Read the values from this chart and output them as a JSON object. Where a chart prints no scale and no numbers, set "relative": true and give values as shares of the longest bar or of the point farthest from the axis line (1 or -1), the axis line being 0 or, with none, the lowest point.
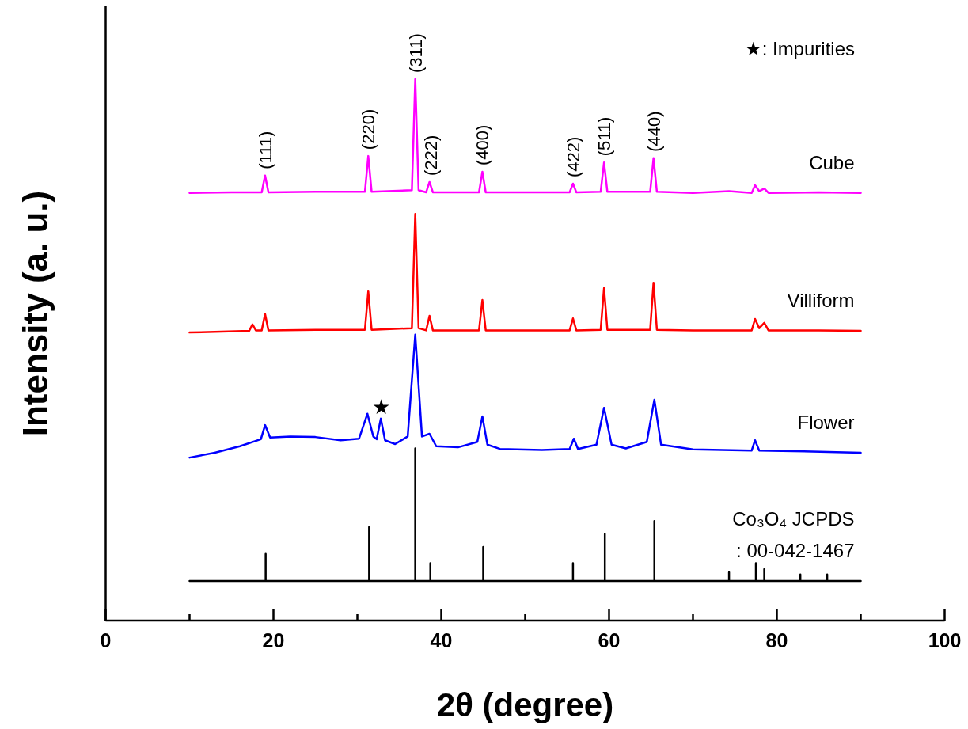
{
  "chart_data": {
    "type": "line",
    "relative": true,
    "xlabel": "2θ (degree)",
    "ylabel": "Intensity (a. u.)",
    "xlim": [
      0,
      100
    ],
    "xticks": [
      0,
      {
        "value": 10,
        "label": null
      },
      20,
      {
        "value": 30,
        "label": null
      },
      40,
      {
        "value": 50,
        "label": null
      },
      60,
      {
        "value": 70,
        "label": null
      },
      80,
      {
        "value": 90,
        "label": null
      },
      100
    ],
    "series": [
      {
        "name": "Cube",
        "color": "#ff00ff",
        "x": [
          10,
          15,
          18.6,
          19.0,
          19.4,
          25,
          30.9,
          31.3,
          31.7,
          36.5,
          36.9,
          37.3,
          38.2,
          38.6,
          39.0,
          44.5,
          44.9,
          45.3,
          50,
          55.3,
          55.7,
          56.1,
          59.0,
          59.4,
          59.8,
          64.9,
          65.3,
          65.7,
          70,
          74.3,
          77.0,
          77.4,
          77.9,
          78.5,
          79,
          85,
          90
        ],
        "values": [
          0.79,
          0.791,
          0.791,
          0.822,
          0.791,
          0.792,
          0.792,
          0.858,
          0.792,
          0.795,
          1.0,
          0.795,
          0.791,
          0.81,
          0.791,
          0.791,
          0.829,
          0.791,
          0.791,
          0.791,
          0.807,
          0.791,
          0.792,
          0.846,
          0.792,
          0.792,
          0.854,
          0.792,
          0.79,
          0.793,
          0.79,
          0.804,
          0.793,
          0.798,
          0.79,
          0.791,
          0.79
        ]
      },
      {
        "name": "Villiform",
        "color": "#ff0000",
        "x": [
          10,
          17.1,
          17.5,
          17.9,
          18.6,
          19.0,
          19.4,
          25,
          30.9,
          31.3,
          31.7,
          36.5,
          36.9,
          37.3,
          38.2,
          38.6,
          39.0,
          44.5,
          44.9,
          45.3,
          50,
          55.3,
          55.7,
          56.1,
          59.0,
          59.4,
          59.8,
          64.9,
          65.3,
          65.7,
          70,
          77.0,
          77.4,
          77.9,
          78.5,
          79,
          85,
          90
        ],
        "values": [
          0.532,
          0.535,
          0.547,
          0.536,
          0.536,
          0.566,
          0.536,
          0.537,
          0.537,
          0.608,
          0.537,
          0.54,
          0.751,
          0.54,
          0.536,
          0.563,
          0.536,
          0.536,
          0.592,
          0.536,
          0.536,
          0.536,
          0.558,
          0.536,
          0.537,
          0.614,
          0.537,
          0.537,
          0.624,
          0.537,
          0.536,
          0.536,
          0.557,
          0.54,
          0.55,
          0.536,
          0.536,
          0.535
        ]
      },
      {
        "name": "Flower",
        "color": "#0000ff",
        "x": [
          10,
          13,
          16,
          18.5,
          19.0,
          19.6,
          22,
          25,
          28,
          30.2,
          31.2,
          31.9,
          32.3,
          32.8,
          33.3,
          34.5,
          36.0,
          36.9,
          37.7,
          38.6,
          39.4,
          42,
          44.3,
          44.9,
          45.5,
          47,
          52,
          55.3,
          55.8,
          56.3,
          58.5,
          59.4,
          60.3,
          62,
          64.5,
          65.4,
          66.2,
          70,
          77.0,
          77.4,
          77.9,
          82,
          90
        ],
        "values": [
          0.301,
          0.31,
          0.322,
          0.335,
          0.361,
          0.338,
          0.34,
          0.339,
          0.333,
          0.336,
          0.382,
          0.34,
          0.335,
          0.373,
          0.333,
          0.326,
          0.34,
          0.528,
          0.34,
          0.345,
          0.322,
          0.32,
          0.33,
          0.377,
          0.325,
          0.317,
          0.315,
          0.317,
          0.336,
          0.317,
          0.325,
          0.393,
          0.325,
          0.318,
          0.33,
          0.408,
          0.325,
          0.316,
          0.314,
          0.333,
          0.314,
          0.313,
          0.31
        ]
      },
      {
        "name": "Co₃O₄ JCPDS\n: 00-042-1467",
        "color": "#000000",
        "x": [
          10,
          19.07,
          19.07,
          19.07,
          31.4,
          31.4,
          31.4,
          36.9,
          36.9,
          36.9,
          38.7,
          38.7,
          38.7,
          45.0,
          45.0,
          45.0,
          55.7,
          55.7,
          55.7,
          59.5,
          59.5,
          59.5,
          65.4,
          65.4,
          65.4,
          74.3,
          74.3,
          74.3,
          77.5,
          77.5,
          77.5,
          78.5,
          78.5,
          78.5,
          82.8,
          82.8,
          82.8,
          86.0,
          86.0,
          86.0,
          90
        ],
        "values": [
          0.073,
          0.073,
          0.123,
          0.073,
          0.073,
          0.173,
          0.073,
          0.073,
          0.318,
          0.073,
          0.073,
          0.106,
          0.073,
          0.073,
          0.136,
          0.073,
          0.073,
          0.106,
          0.073,
          0.073,
          0.16,
          0.073,
          0.073,
          0.184,
          0.073,
          0.073,
          0.089,
          0.073,
          0.073,
          0.106,
          0.073,
          0.073,
          0.095,
          0.073,
          0.073,
          0.085,
          0.073,
          0.073,
          0.085,
          0.073,
          0.073
        ]
      }
    ],
    "annotations": [
      {
        "text": "(111)",
        "x": 19.0,
        "y": 0.822
      },
      {
        "text": "(220)",
        "x": 31.3,
        "y": 0.858
      },
      {
        "text": "(311)",
        "x": 36.9,
        "y": 1.0
      },
      {
        "text": "(222)",
        "x": 38.7,
        "y": 0.81
      },
      {
        "text": "(400)",
        "x": 44.9,
        "y": 0.829
      },
      {
        "text": "(422)",
        "x": 55.7,
        "y": 0.807
      },
      {
        "text": "(511)",
        "x": 59.4,
        "y": 0.846
      },
      {
        "text": "(440)",
        "x": 65.3,
        "y": 0.854
      },
      {
        "text": "★",
        "x": 32.8,
        "y": 0.373
      },
      "★: Impurities"
    ]
  }
}
